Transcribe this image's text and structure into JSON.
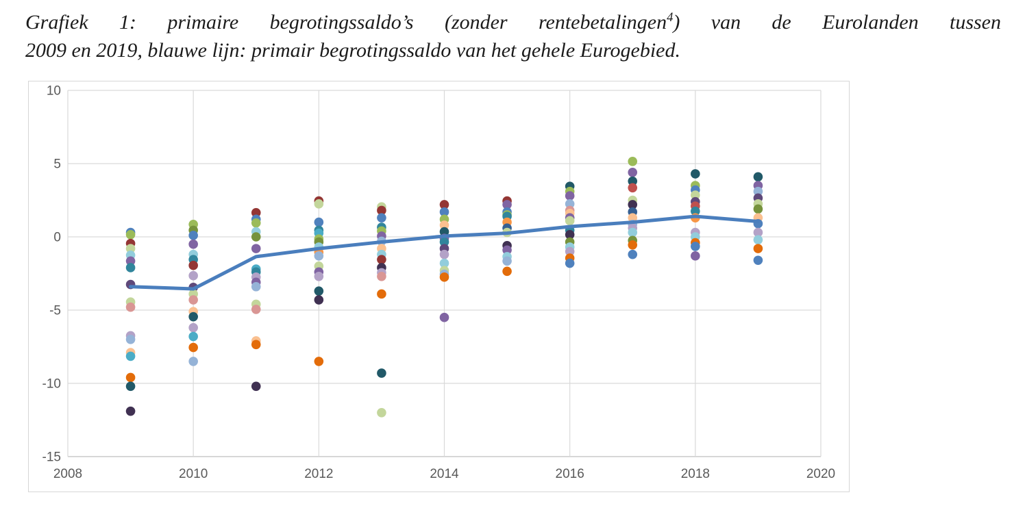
{
  "caption": {
    "line1_pre": "Grafiek 1: primaire begrotingssaldo’s (zonder rentebetalingen",
    "footnote_marker": "4",
    "line1_post": ") van de Eurolanden tussen",
    "line2": "2009 en 2019, blauwe lijn: primair begrotingssaldo van het gehele Eurogebied."
  },
  "chart_data": {
    "type": "scatter",
    "title": "Grafiek 1: primaire begrotingssaldo’s (zonder rentebetalingen) van de Eurolanden tussen 2009 en 2019",
    "xlabel": "",
    "ylabel": "",
    "xlim": [
      2008,
      2020
    ],
    "ylim": [
      -15,
      10
    ],
    "x_ticks": [
      2008,
      2010,
      2012,
      2014,
      2016,
      2018,
      2020
    ],
    "y_ticks": [
      10,
      5,
      0,
      -5,
      -10,
      -15
    ],
    "grid_on": true,
    "grid_color": "#d9d9d9",
    "axis_line_color": "#bfbfbf",
    "axis_label_color": "#595959",
    "legend": "none",
    "line_series": {
      "name": "Primair begrotingssaldo gehele Eurogebied (blauwe lijn)",
      "color": "#4A7EBD",
      "x": [
        2009,
        2010,
        2011,
        2012,
        2013,
        2014,
        2015,
        2016,
        2017,
        2018,
        2019
      ],
      "y": [
        -3.4,
        -3.55,
        -1.35,
        -0.8,
        -0.35,
        0.05,
        0.25,
        0.7,
        1.0,
        1.4,
        1.05
      ]
    },
    "scatter_name": "Primaire begrotingssaldo’s van de afzonderlijke Eurolanden (gekleurde punten, per jaar)",
    "scatter": [
      {
        "year": 2009,
        "points": [
          [
            0.3,
            "#4F81BD"
          ],
          [
            0.15,
            "#9BBB59"
          ],
          [
            -0.45,
            "#943634"
          ],
          [
            -0.8,
            "#C3D69B"
          ],
          [
            -1.25,
            "#92CDDC"
          ],
          [
            -1.65,
            "#8064A2"
          ],
          [
            -2.1,
            "#31859C"
          ],
          [
            -3.25,
            "#5F497A"
          ],
          [
            -4.45,
            "#C3D69B"
          ],
          [
            -4.8,
            "#D99694"
          ],
          [
            -6.75,
            "#B3A2C7"
          ],
          [
            -7.0,
            "#95B3D7"
          ],
          [
            -7.9,
            "#FAC090"
          ],
          [
            -8.15,
            "#4BACC6"
          ],
          [
            -9.6,
            "#E36C0A"
          ],
          [
            -10.2,
            "#215968"
          ],
          [
            -11.9,
            "#403152"
          ]
        ]
      },
      {
        "year": 2010,
        "points": [
          [
            0.85,
            "#9BBB59"
          ],
          [
            0.45,
            "#76923C"
          ],
          [
            0.1,
            "#4F81BD"
          ],
          [
            -0.5,
            "#8064A2"
          ],
          [
            -1.2,
            "#92CDDC"
          ],
          [
            -1.55,
            "#31859C"
          ],
          [
            -1.95,
            "#943634"
          ],
          [
            -2.65,
            "#B3A2C7"
          ],
          [
            -3.45,
            "#5F497A"
          ],
          [
            -3.9,
            "#C3D69B"
          ],
          [
            -4.3,
            "#D99694"
          ],
          [
            -5.1,
            "#FAC090"
          ],
          [
            -5.45,
            "#215968"
          ],
          [
            -6.2,
            "#B3A2C7"
          ],
          [
            -6.8,
            "#4BACC6"
          ],
          [
            -7.55,
            "#E36C0A"
          ],
          [
            -8.5,
            "#95B3D7"
          ]
        ]
      },
      {
        "year": 2011,
        "points": [
          [
            1.65,
            "#943634"
          ],
          [
            1.2,
            "#4F81BD"
          ],
          [
            0.95,
            "#9BBB59"
          ],
          [
            0.35,
            "#92CDDC"
          ],
          [
            0.0,
            "#76923C"
          ],
          [
            -0.8,
            "#8064A2"
          ],
          [
            -2.2,
            "#4BACC6"
          ],
          [
            -2.4,
            "#31859C"
          ],
          [
            -2.75,
            "#B3A2C7"
          ],
          [
            -3.1,
            "#8064A2"
          ],
          [
            -3.4,
            "#95B3D7"
          ],
          [
            -4.6,
            "#C3D69B"
          ],
          [
            -4.95,
            "#D99694"
          ],
          [
            -7.1,
            "#FAC090"
          ],
          [
            -7.35,
            "#E36C0A"
          ],
          [
            -10.2,
            "#403152"
          ]
        ]
      },
      {
        "year": 2012,
        "points": [
          [
            2.45,
            "#943634"
          ],
          [
            2.25,
            "#C3D69B"
          ],
          [
            1.0,
            "#4F81BD"
          ],
          [
            0.45,
            "#31859C"
          ],
          [
            0.25,
            "#4BACC6"
          ],
          [
            -0.15,
            "#9BBB59"
          ],
          [
            -0.35,
            "#76923C"
          ],
          [
            -0.7,
            "#92CDDC"
          ],
          [
            -1.05,
            "#F79646"
          ],
          [
            -1.3,
            "#95B3D7"
          ],
          [
            -2.0,
            "#C3D69B"
          ],
          [
            -2.4,
            "#8064A2"
          ],
          [
            -2.7,
            "#B3A2C7"
          ],
          [
            -3.7,
            "#215968"
          ],
          [
            -4.3,
            "#403152"
          ],
          [
            -8.5,
            "#E36C0A"
          ]
        ]
      },
      {
        "year": 2013,
        "points": [
          [
            2.05,
            "#C3D69B"
          ],
          [
            1.8,
            "#943634"
          ],
          [
            1.3,
            "#4F81BD"
          ],
          [
            0.65,
            "#31859C"
          ],
          [
            0.4,
            "#9BBB59"
          ],
          [
            0.05,
            "#8064A2"
          ],
          [
            -0.3,
            "#95B3D7"
          ],
          [
            -0.8,
            "#FAC090"
          ],
          [
            -1.2,
            "#92CDDC"
          ],
          [
            -1.55,
            "#943634"
          ],
          [
            -2.1,
            "#403152"
          ],
          [
            -2.45,
            "#B3A2C7"
          ],
          [
            -2.7,
            "#D99694"
          ],
          [
            -3.9,
            "#E36C0A"
          ],
          [
            -9.3,
            "#215968"
          ],
          [
            -12.0,
            "#C3D69B"
          ]
        ]
      },
      {
        "year": 2014,
        "points": [
          [
            2.2,
            "#943634"
          ],
          [
            1.7,
            "#4F81BD"
          ],
          [
            1.2,
            "#9BBB59"
          ],
          [
            0.8,
            "#FAC090"
          ],
          [
            0.35,
            "#215968"
          ],
          [
            -0.1,
            "#8064A2"
          ],
          [
            -0.35,
            "#31859C"
          ],
          [
            -0.8,
            "#5F497A"
          ],
          [
            -1.2,
            "#B3A2C7"
          ],
          [
            -1.8,
            "#92CDDC"
          ],
          [
            -2.3,
            "#C3D69B"
          ],
          [
            -2.55,
            "#95B3D7"
          ],
          [
            -2.75,
            "#E36C0A"
          ],
          [
            -5.5,
            "#8064A2"
          ]
        ]
      },
      {
        "year": 2015,
        "points": [
          [
            2.45,
            "#943634"
          ],
          [
            2.2,
            "#8064A2"
          ],
          [
            1.7,
            "#4F81BD"
          ],
          [
            1.5,
            "#9BBB59"
          ],
          [
            1.4,
            "#31859C"
          ],
          [
            1.0,
            "#F79646"
          ],
          [
            0.6,
            "#366092"
          ],
          [
            0.3,
            "#C3D69B"
          ],
          [
            -0.6,
            "#403152"
          ],
          [
            -0.9,
            "#8064A2"
          ],
          [
            -1.35,
            "#92CDDC"
          ],
          [
            -1.65,
            "#95B3D7"
          ],
          [
            -2.35,
            "#E36C0A"
          ]
        ]
      },
      {
        "year": 2016,
        "points": [
          [
            3.45,
            "#215968"
          ],
          [
            3.1,
            "#9BBB59"
          ],
          [
            2.8,
            "#8064A2"
          ],
          [
            2.25,
            "#95B3D7"
          ],
          [
            1.8,
            "#D99694"
          ],
          [
            1.6,
            "#FAC090"
          ],
          [
            1.3,
            "#8064A2"
          ],
          [
            1.1,
            "#C3D69B"
          ],
          [
            0.45,
            "#31859C"
          ],
          [
            0.15,
            "#403152"
          ],
          [
            -0.35,
            "#76923C"
          ],
          [
            -0.7,
            "#92CDDC"
          ],
          [
            -1.0,
            "#B3A2C7"
          ],
          [
            -1.45,
            "#E36C0A"
          ],
          [
            -1.8,
            "#4F81BD"
          ]
        ]
      },
      {
        "year": 2017,
        "points": [
          [
            5.15,
            "#9BBB59"
          ],
          [
            4.4,
            "#8064A2"
          ],
          [
            3.8,
            "#215968"
          ],
          [
            3.35,
            "#C0504D"
          ],
          [
            2.5,
            "#C3D69B"
          ],
          [
            2.2,
            "#403152"
          ],
          [
            1.7,
            "#366092"
          ],
          [
            1.3,
            "#FAC090"
          ],
          [
            0.85,
            "#95B3D7"
          ],
          [
            0.6,
            "#B3A2C7"
          ],
          [
            0.3,
            "#92CDDC"
          ],
          [
            -0.25,
            "#76923C"
          ],
          [
            -0.55,
            "#E36C0A"
          ],
          [
            -1.2,
            "#4F81BD"
          ]
        ]
      },
      {
        "year": 2018,
        "points": [
          [
            4.3,
            "#215968"
          ],
          [
            3.5,
            "#9BBB59"
          ],
          [
            3.2,
            "#4F81BD"
          ],
          [
            2.85,
            "#C3D69B"
          ],
          [
            2.4,
            "#5F497A"
          ],
          [
            2.1,
            "#C0504D"
          ],
          [
            1.75,
            "#31859C"
          ],
          [
            1.3,
            "#F79646"
          ],
          [
            0.3,
            "#B3A2C7"
          ],
          [
            0.0,
            "#92CDDC"
          ],
          [
            -0.4,
            "#E36C0A"
          ],
          [
            -0.65,
            "#4F81BD"
          ],
          [
            -1.3,
            "#8064A2"
          ]
        ]
      },
      {
        "year": 2019,
        "points": [
          [
            4.1,
            "#215968"
          ],
          [
            3.5,
            "#8064A2"
          ],
          [
            3.1,
            "#95B3D7"
          ],
          [
            2.65,
            "#5F497A"
          ],
          [
            2.25,
            "#C3D69B"
          ],
          [
            1.9,
            "#76923C"
          ],
          [
            1.3,
            "#FAC090"
          ],
          [
            0.9,
            "#4F81BD"
          ],
          [
            0.3,
            "#B3A2C7"
          ],
          [
            -0.2,
            "#92CDDC"
          ],
          [
            -0.8,
            "#E36C0A"
          ],
          [
            -1.6,
            "#4F81BD"
          ]
        ]
      }
    ]
  }
}
